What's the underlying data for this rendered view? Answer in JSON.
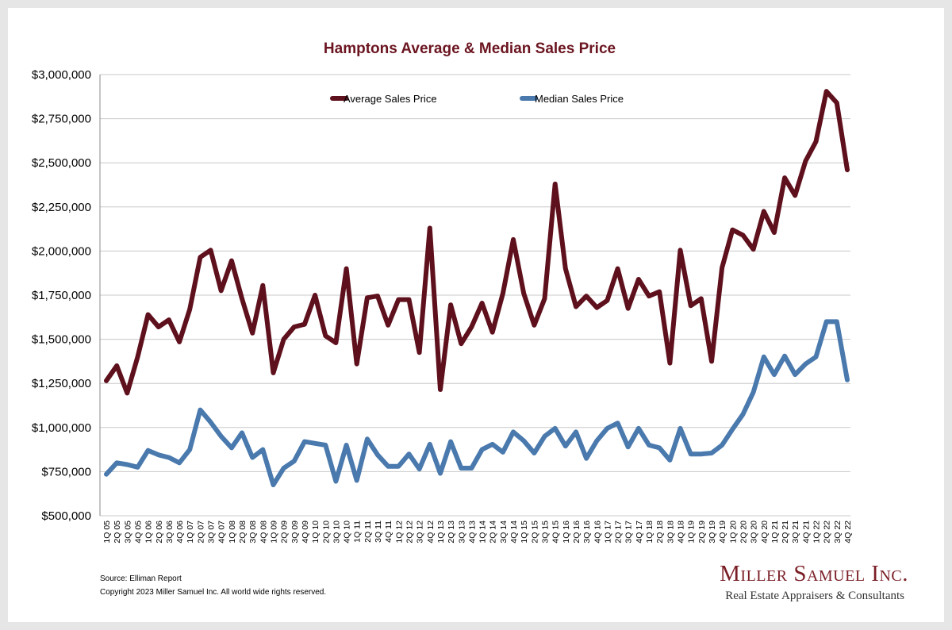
{
  "chart_data": {
    "type": "line",
    "title": "Hamptons Average & Median Sales Price",
    "xlabel": "",
    "ylabel": "",
    "ylim": [
      500000,
      3000000
    ],
    "yticks": [
      "$3,000,000",
      "$2,750,000",
      "$2,500,000",
      "$2,250,000",
      "$2,000,000",
      "$1,750,000",
      "$1,500,000",
      "$1,250,000",
      "$1,000,000",
      "$750,000",
      "$500,000"
    ],
    "grid": true,
    "legend_position": "top",
    "categories": [
      "1Q 05",
      "2Q 05",
      "3Q 05",
      "4Q 05",
      "1Q 06",
      "2Q 06",
      "3Q 06",
      "4Q 06",
      "1Q 07",
      "2Q 07",
      "3Q 07",
      "4Q 07",
      "1Q 08",
      "2Q 08",
      "3Q 08",
      "4Q 08",
      "1Q 09",
      "2Q 09",
      "3Q 09",
      "4Q 09",
      "1Q 10",
      "2Q 10",
      "3Q 10",
      "4Q 10",
      "1Q 11",
      "2Q 11",
      "3Q 11",
      "4Q 11",
      "1Q 12",
      "2Q 12",
      "3Q 12",
      "4Q 12",
      "1Q 13",
      "2Q 13",
      "3Q 13",
      "4Q 13",
      "1Q 14",
      "2Q 14",
      "3Q 14",
      "4Q 14",
      "1Q 15",
      "2Q 15",
      "3Q 15",
      "4Q 15",
      "1Q 16",
      "2Q 16",
      "3Q 16",
      "4Q 16",
      "1Q 17",
      "2Q 17",
      "3Q 17",
      "4Q 17",
      "1Q 18",
      "2Q 18",
      "3Q 18",
      "4Q 18",
      "1Q 19",
      "2Q 19",
      "3Q 19",
      "4Q 19",
      "1Q 20",
      "2Q 20",
      "3Q 20",
      "4Q 20",
      "1Q 21",
      "2Q 21",
      "3Q 21",
      "4Q 21",
      "1Q 22",
      "2Q 22",
      "3Q 22",
      "4Q 22"
    ],
    "series": [
      {
        "name": "Average Sales Price",
        "color": "#5e101c",
        "values": [
          1265000,
          1350000,
          1195000,
          1400000,
          1640000,
          1570000,
          1610000,
          1485000,
          1670000,
          1965000,
          2005000,
          1775000,
          1945000,
          1730000,
          1535000,
          1805000,
          1310000,
          1500000,
          1570000,
          1585000,
          1750000,
          1520000,
          1480000,
          1900000,
          1360000,
          1735000,
          1745000,
          1580000,
          1725000,
          1725000,
          1425000,
          2130000,
          1215000,
          1695000,
          1475000,
          1570000,
          1705000,
          1540000,
          1760000,
          2065000,
          1760000,
          1580000,
          1730000,
          2380000,
          1900000,
          1685000,
          1745000,
          1680000,
          1720000,
          1900000,
          1675000,
          1840000,
          1745000,
          1770000,
          1365000,
          2005000,
          1690000,
          1730000,
          1375000,
          1905000,
          2120000,
          2090000,
          2010000,
          2225000,
          2105000,
          2415000,
          2315000,
          2510000,
          2620000,
          2905000,
          2840000,
          2460000
        ]
      },
      {
        "name": "Median Sales Price",
        "color": "#4a79ad",
        "values": [
          735000,
          800000,
          790000,
          775000,
          870000,
          845000,
          830000,
          800000,
          875000,
          1100000,
          1030000,
          950000,
          885000,
          970000,
          830000,
          875000,
          675000,
          770000,
          810000,
          920000,
          910000,
          900000,
          695000,
          900000,
          700000,
          935000,
          845000,
          780000,
          780000,
          850000,
          765000,
          905000,
          740000,
          920000,
          770000,
          770000,
          875000,
          905000,
          860000,
          975000,
          925000,
          855000,
          950000,
          995000,
          895000,
          975000,
          825000,
          925000,
          995000,
          1025000,
          890000,
          995000,
          900000,
          885000,
          815000,
          995000,
          850000,
          850000,
          855000,
          900000,
          990000,
          1075000,
          1200000,
          1400000,
          1300000,
          1405000,
          1300000,
          1360000,
          1400000,
          1600000,
          1600000,
          1270000
        ]
      }
    ]
  },
  "footer": {
    "source": "Source: Elliman Report",
    "copyright": "Copyright 2023 Miller Samuel Inc.  All world wide rights reserved."
  },
  "brand": {
    "name": "Miller Samuel Inc.",
    "tagline": "Real Estate Appraisers & Consultants"
  }
}
